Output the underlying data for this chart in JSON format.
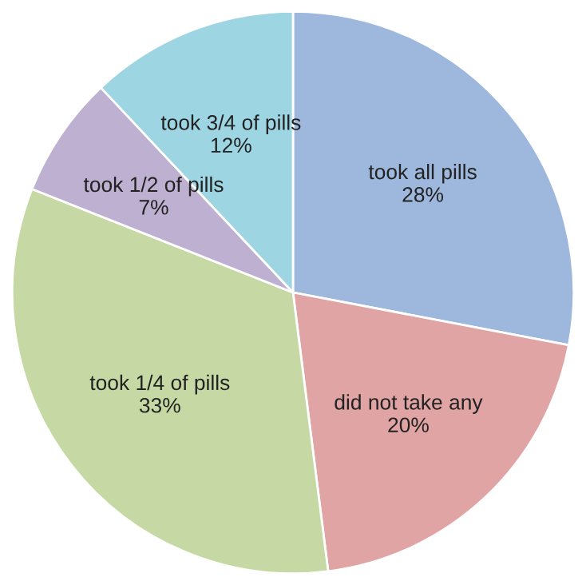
{
  "chart_data": {
    "type": "pie",
    "categories": [
      "took all pills",
      "did not take any",
      "took 1/4 of pills",
      "took 1/2 of pills",
      "took 3/4 of pills"
    ],
    "values": [
      28,
      20,
      33,
      7,
      12
    ],
    "value_labels": [
      "28%",
      "20%",
      "33%",
      "7%",
      "12%"
    ],
    "colors": [
      "#9db8dc",
      "#dfa4a3",
      "#c6d9a4",
      "#bdb0d0",
      "#9ed5e3"
    ]
  }
}
